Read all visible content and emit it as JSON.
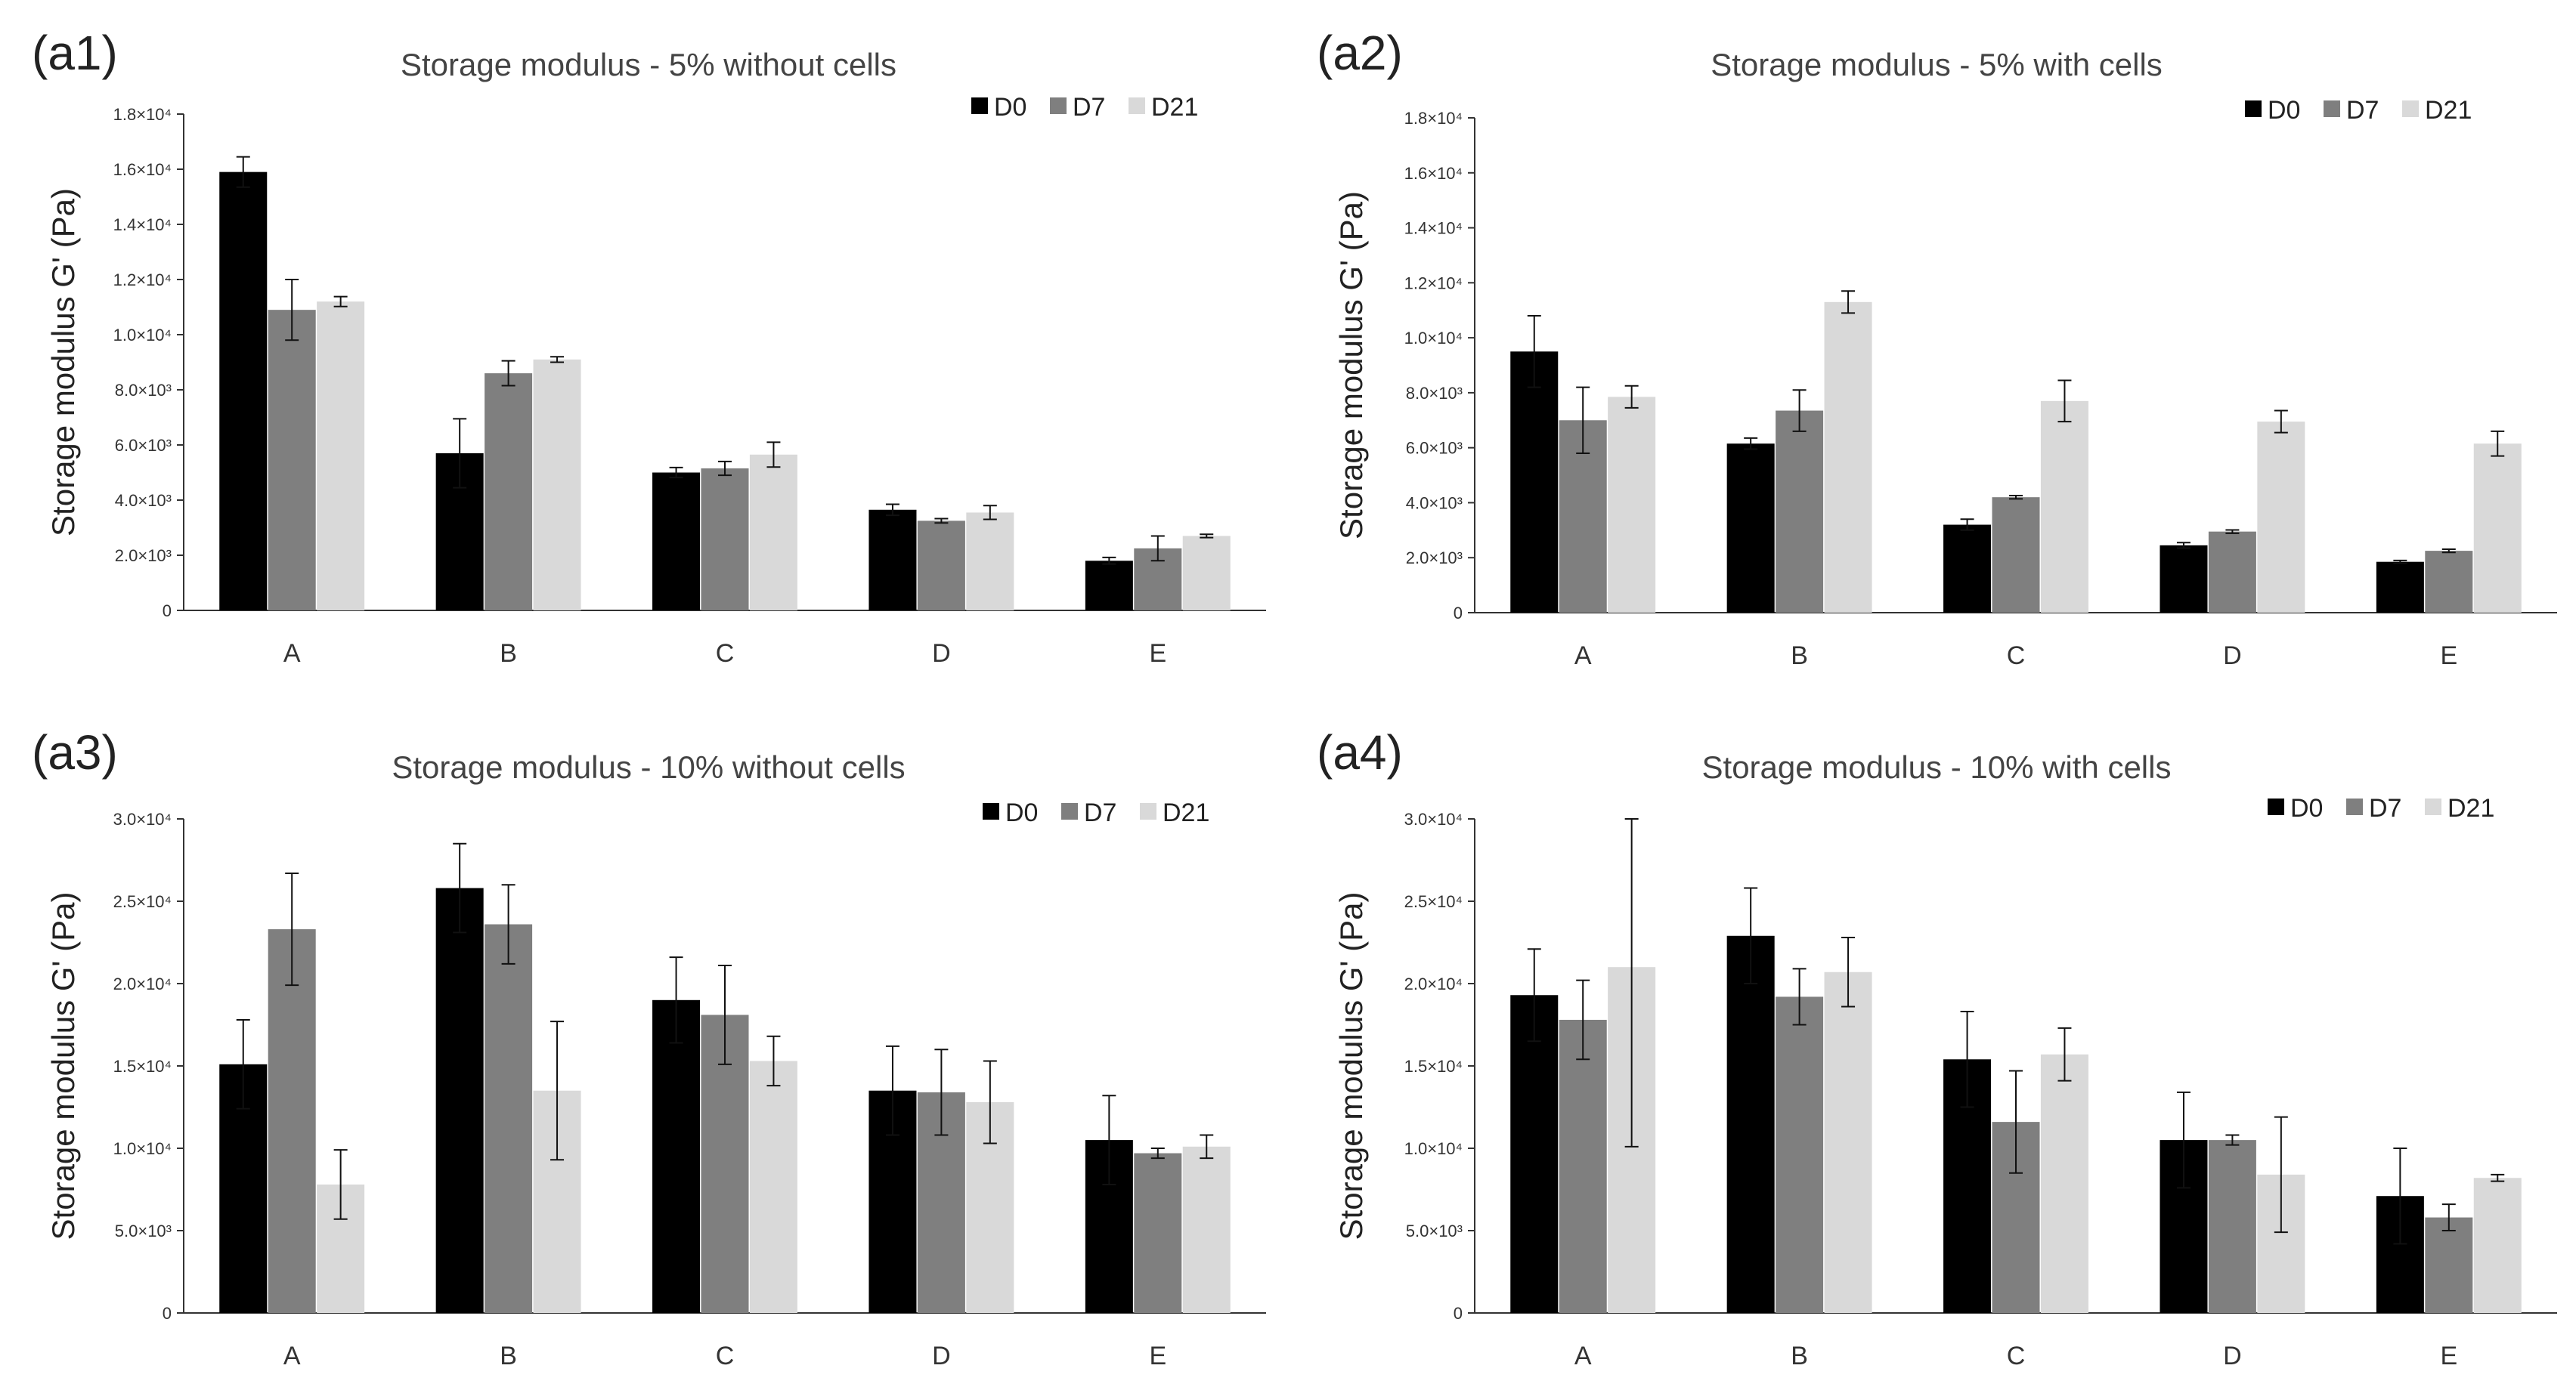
{
  "chart_data": [
    {
      "type": "bar",
      "panel": "(a1)",
      "title": "Storage modulus - 5% without cells",
      "ylabel": "Storage modulus G' (Pa)",
      "xlabel": "",
      "categories": [
        "A",
        "B",
        "C",
        "D",
        "E"
      ],
      "ylim": [
        0,
        18000
      ],
      "yticks": [
        0,
        2000,
        4000,
        6000,
        8000,
        10000,
        12000,
        14000,
        16000,
        18000
      ],
      "ytick_labels": [
        "0",
        "2.0×10³",
        "4.0×10³",
        "6.0×10³",
        "8.0×10³",
        "1.0×10⁴",
        "1.2×10⁴",
        "1.4×10⁴",
        "1.6×10⁴",
        "1.8×10⁴"
      ],
      "legend_position": "top-right",
      "grid": false,
      "series": [
        {
          "name": "D0",
          "color": "#000000",
          "values": [
            15900,
            5700,
            5000,
            3650,
            1800
          ],
          "errors": [
            550,
            1250,
            180,
            200,
            120
          ]
        },
        {
          "name": "D7",
          "color": "#7f7f7f",
          "values": [
            10900,
            8600,
            5150,
            3250,
            2250
          ],
          "errors": [
            1100,
            450,
            250,
            80,
            450
          ]
        },
        {
          "name": "D21",
          "color": "#d9d9d9",
          "values": [
            11200,
            9100,
            5650,
            3550,
            2700
          ],
          "errors": [
            180,
            100,
            450,
            250,
            60
          ]
        }
      ]
    },
    {
      "type": "bar",
      "panel": "(a2)",
      "title": "Storage modulus - 5% with cells",
      "ylabel": "Storage modulus G' (Pa)",
      "xlabel": "",
      "categories": [
        "A",
        "B",
        "C",
        "D",
        "E"
      ],
      "ylim": [
        0,
        18000
      ],
      "yticks": [
        0,
        2000,
        4000,
        6000,
        8000,
        10000,
        12000,
        14000,
        16000,
        18000
      ],
      "ytick_labels": [
        "0",
        "2.0×10³",
        "4.0×10³",
        "6.0×10³",
        "8.0×10³",
        "1.0×10⁴",
        "1.2×10⁴",
        "1.4×10⁴",
        "1.6×10⁴",
        "1.8×10⁴"
      ],
      "legend_position": "top-right",
      "grid": false,
      "series": [
        {
          "name": "D0",
          "color": "#000000",
          "values": [
            9500,
            6150,
            3200,
            2450,
            1850
          ],
          "errors": [
            1300,
            200,
            200,
            100,
            50
          ]
        },
        {
          "name": "D7",
          "color": "#7f7f7f",
          "values": [
            7000,
            7350,
            4200,
            2950,
            2250
          ],
          "errors": [
            1200,
            750,
            60,
            60,
            60
          ]
        },
        {
          "name": "D21",
          "color": "#d9d9d9",
          "values": [
            7850,
            11300,
            7700,
            6950,
            6150
          ],
          "errors": [
            400,
            400,
            750,
            400,
            450
          ]
        }
      ]
    },
    {
      "type": "bar",
      "panel": "(a3)",
      "title": "Storage modulus - 10% without cells",
      "ylabel": "Storage modulus G' (Pa)",
      "xlabel": "",
      "categories": [
        "A",
        "B",
        "C",
        "D",
        "E"
      ],
      "ylim": [
        0,
        30000
      ],
      "yticks": [
        0,
        5000,
        10000,
        15000,
        20000,
        25000,
        30000
      ],
      "ytick_labels": [
        "0",
        "5.0×10³",
        "1.0×10⁴",
        "1.5×10⁴",
        "2.0×10⁴",
        "2.5×10⁴",
        "3.0×10⁴"
      ],
      "legend_position": "top-right",
      "grid": false,
      "series": [
        {
          "name": "D0",
          "color": "#000000",
          "values": [
            15100,
            25800,
            19000,
            13500,
            10500
          ],
          "errors": [
            2700,
            2700,
            2600,
            2700,
            2700
          ]
        },
        {
          "name": "D7",
          "color": "#7f7f7f",
          "values": [
            23300,
            23600,
            18100,
            13400,
            9700
          ],
          "errors": [
            3400,
            2400,
            3000,
            2600,
            300
          ]
        },
        {
          "name": "D21",
          "color": "#d9d9d9",
          "values": [
            7800,
            13500,
            15300,
            12800,
            10100
          ],
          "errors": [
            2100,
            4200,
            1500,
            2500,
            700
          ]
        }
      ]
    },
    {
      "type": "bar",
      "panel": "(a4)",
      "title": "Storage modulus - 10% with cells",
      "ylabel": "Storage modulus G' (Pa)",
      "xlabel": "",
      "categories": [
        "A",
        "B",
        "C",
        "D",
        "E"
      ],
      "ylim": [
        0,
        30000
      ],
      "yticks": [
        0,
        5000,
        10000,
        15000,
        20000,
        25000,
        30000
      ],
      "ytick_labels": [
        "0",
        "5.0×10³",
        "1.0×10⁴",
        "1.5×10⁴",
        "2.0×10⁴",
        "2.5×10⁴",
        "3.0×10⁴"
      ],
      "legend_position": "top-right",
      "grid": false,
      "series": [
        {
          "name": "D0",
          "color": "#000000",
          "values": [
            19300,
            22900,
            15400,
            10500,
            7100
          ],
          "errors": [
            2800,
            2900,
            2900,
            2900,
            2900
          ]
        },
        {
          "name": "D7",
          "color": "#7f7f7f",
          "values": [
            17800,
            19200,
            11600,
            10500,
            5800
          ],
          "errors": [
            2400,
            1700,
            3100,
            300,
            800
          ]
        },
        {
          "name": "D21",
          "color": "#d9d9d9",
          "values": [
            21000,
            20700,
            15700,
            8400,
            8200
          ],
          "errors": [
            10900,
            2100,
            1600,
            3500,
            200
          ]
        }
      ]
    }
  ]
}
